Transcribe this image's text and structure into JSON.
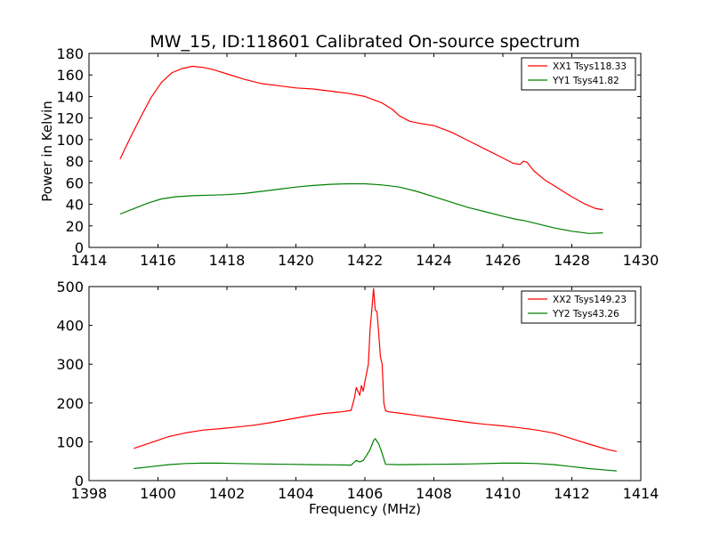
{
  "figure": {
    "title": "MW_15, ID:118601 Calibrated On-source spectrum",
    "ylabel": "Power in Kelvin",
    "xlabel": "Frequency (MHz)"
  },
  "chart_data": [
    {
      "type": "line",
      "title": "MW_15, ID:118601 Calibrated On-source spectrum",
      "xlabel": "",
      "ylabel": "Power in Kelvin",
      "xlim": [
        1414,
        1430
      ],
      "ylim": [
        0,
        180
      ],
      "xticks": [
        "1414",
        "1416",
        "1418",
        "1420",
        "1422",
        "1424",
        "1426",
        "1428",
        "1430"
      ],
      "yticks": [
        "0",
        "20",
        "40",
        "60",
        "80",
        "100",
        "120",
        "140",
        "160",
        "180"
      ],
      "grid": false,
      "legend_position": "top-right",
      "series": [
        {
          "name": "XX1 Tsys118.33",
          "color": "#ff0000",
          "x": [
            1414.9,
            1415.2,
            1415.5,
            1415.8,
            1416.1,
            1416.4,
            1416.7,
            1417.0,
            1417.3,
            1417.6,
            1418.0,
            1418.5,
            1419.0,
            1419.5,
            1420.0,
            1420.5,
            1421.0,
            1421.5,
            1422.0,
            1422.5,
            1422.8,
            1423.0,
            1423.3,
            1423.6,
            1424.0,
            1424.5,
            1425.0,
            1425.5,
            1426.0,
            1426.3,
            1426.5,
            1426.6,
            1426.7,
            1426.9,
            1427.2,
            1427.6,
            1428.0,
            1428.4,
            1428.7,
            1428.9
          ],
          "y": [
            82,
            102,
            121,
            139,
            153,
            162,
            166,
            168,
            167,
            165,
            161,
            156,
            152,
            150,
            148,
            147,
            145,
            143,
            140,
            134,
            128,
            122,
            117,
            115,
            113,
            107,
            99,
            91,
            83,
            78,
            77,
            80,
            79,
            71,
            63,
            55,
            47,
            40,
            36,
            35
          ]
        },
        {
          "name": "YY1 Tsys41.82",
          "color": "#008000",
          "x": [
            1414.9,
            1415.3,
            1415.7,
            1416.1,
            1416.5,
            1417.0,
            1417.5,
            1418.0,
            1418.5,
            1419.0,
            1419.5,
            1420.0,
            1420.5,
            1421.0,
            1421.5,
            1422.0,
            1422.5,
            1423.0,
            1423.5,
            1424.0,
            1424.5,
            1425.0,
            1425.5,
            1426.0,
            1426.4,
            1426.6,
            1427.0,
            1427.5,
            1428.0,
            1428.5,
            1428.9
          ],
          "y": [
            31,
            36,
            41,
            45,
            47,
            48,
            48.5,
            49,
            50,
            52,
            54,
            56,
            57.5,
            58.5,
            59,
            59,
            58,
            56,
            52,
            47,
            42,
            37,
            33,
            29,
            26,
            25,
            22,
            18,
            15,
            13,
            13.5
          ]
        }
      ]
    },
    {
      "type": "line",
      "title": "",
      "xlabel": "Frequency (MHz)",
      "ylabel": "",
      "xlim": [
        1398,
        1414
      ],
      "ylim": [
        0,
        500
      ],
      "xticks": [
        "1398",
        "1400",
        "1402",
        "1404",
        "1406",
        "1408",
        "1410",
        "1412",
        "1414"
      ],
      "yticks": [
        "0",
        "100",
        "200",
        "300",
        "400",
        "500"
      ],
      "grid": false,
      "legend_position": "top-right",
      "series": [
        {
          "name": "XX2 Tsys149.23",
          "color": "#ff0000",
          "x": [
            1399.3,
            1399.8,
            1400.3,
            1400.8,
            1401.3,
            1401.8,
            1402.3,
            1402.8,
            1403.3,
            1403.8,
            1404.3,
            1404.8,
            1405.3,
            1405.6,
            1405.7,
            1405.75,
            1405.85,
            1405.9,
            1405.95,
            1406.0,
            1406.1,
            1406.15,
            1406.2,
            1406.25,
            1406.3,
            1406.35,
            1406.4,
            1406.45,
            1406.5,
            1406.55,
            1406.6,
            1406.7,
            1407.0,
            1407.5,
            1408.0,
            1408.5,
            1409.0,
            1409.5,
            1410.0,
            1410.5,
            1411.0,
            1411.5,
            1412.0,
            1412.5,
            1413.0,
            1413.3
          ],
          "y": [
            83,
            98,
            113,
            123,
            130,
            134,
            138,
            143,
            150,
            158,
            166,
            173,
            177,
            181,
            215,
            240,
            220,
            245,
            230,
            255,
            300,
            390,
            440,
            495,
            440,
            435,
            380,
            320,
            300,
            200,
            180,
            177,
            174,
            168,
            162,
            156,
            150,
            145,
            141,
            136,
            130,
            122,
            108,
            94,
            81,
            75
          ]
        },
        {
          "name": "YY2 Tsys43.26",
          "color": "#008000",
          "x": [
            1399.3,
            1399.8,
            1400.3,
            1400.8,
            1401.3,
            1401.8,
            1402.3,
            1403.0,
            1403.8,
            1404.5,
            1405.2,
            1405.6,
            1405.75,
            1405.85,
            1405.95,
            1406.05,
            1406.15,
            1406.25,
            1406.3,
            1406.4,
            1406.5,
            1406.6,
            1407.0,
            1407.5,
            1408.0,
            1409.0,
            1410.0,
            1410.5,
            1411.0,
            1411.5,
            1412.0,
            1412.5,
            1413.0,
            1413.3
          ],
          "y": [
            31,
            36,
            41,
            44,
            45,
            45,
            44,
            43,
            42,
            41,
            40.5,
            40,
            52,
            48,
            52,
            65,
            80,
            103,
            108,
            95,
            70,
            42,
            41,
            41.5,
            42,
            43,
            45,
            45,
            44,
            41,
            36,
            31,
            27,
            25
          ]
        }
      ]
    }
  ]
}
